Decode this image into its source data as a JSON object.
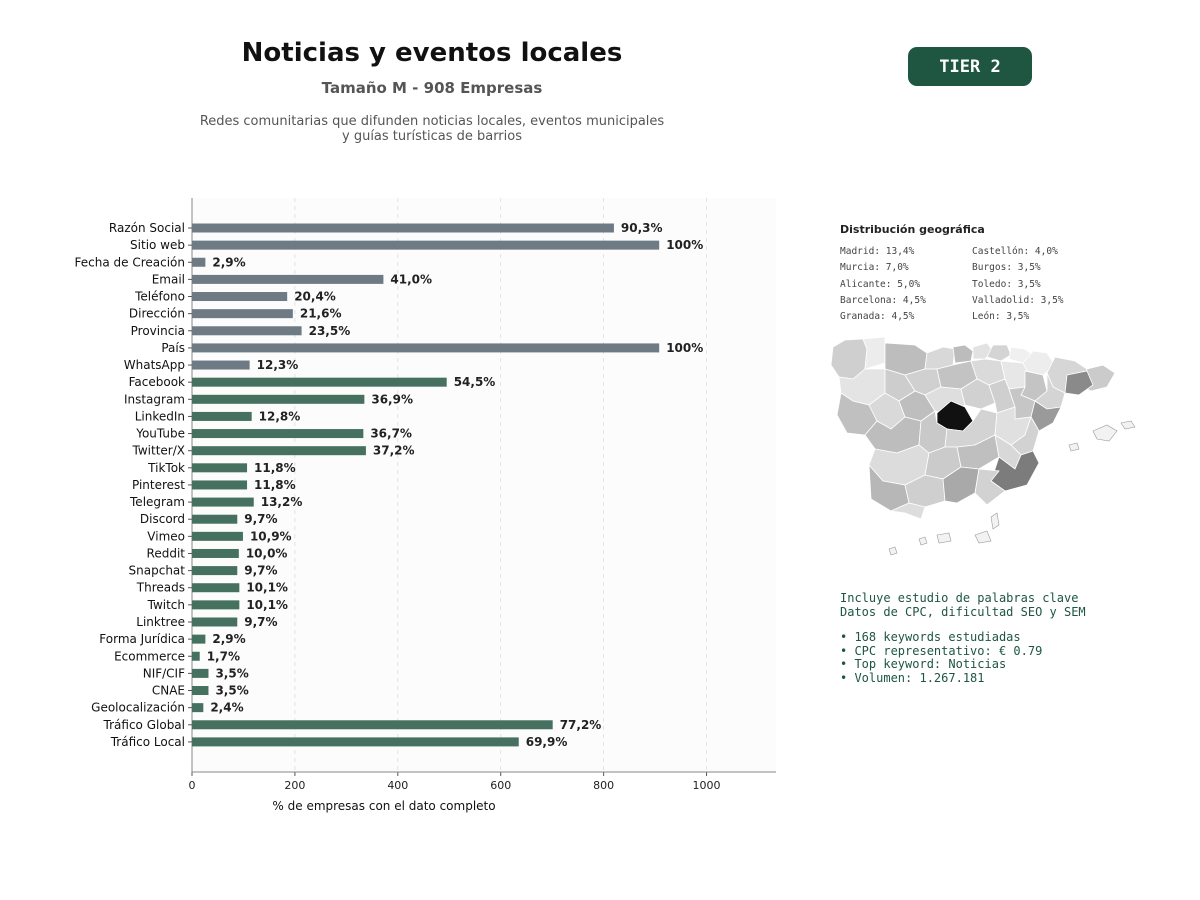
{
  "header": {
    "title": "Noticias y eventos locales",
    "subtitle": "Tamaño M - 908 Empresas",
    "description_line1": "Redes comunitarias que difunden noticias locales, eventos municipales",
    "description_line2": "y guías turísticas de barrios",
    "tier_badge": "TIER 2"
  },
  "chart_data": {
    "type": "bar",
    "orientation": "horizontal",
    "xlabel": "% de empresas con el dato completo",
    "xlim": [
      0,
      1135
    ],
    "xticks": [
      0,
      200,
      400,
      600,
      800,
      1000
    ],
    "grid": "vertical dashed",
    "categories": [
      "Razón Social",
      "Sitio web",
      "Fecha de Creación",
      "Email",
      "Teléfono",
      "Dirección",
      "Provincia",
      "País",
      "WhatsApp",
      "Facebook",
      "Instagram",
      "LinkedIn",
      "YouTube",
      "Twitter/X",
      "TikTok",
      "Pinterest",
      "Telegram",
      "Discord",
      "Vimeo",
      "Reddit",
      "Snapchat",
      "Threads",
      "Twitch",
      "Linktree",
      "Forma Jurídica",
      "Ecommerce",
      "NIF/CIF",
      "CNAE",
      "Geolocalización",
      "Tráfico Global",
      "Tráfico Local"
    ],
    "values": [
      820,
      908,
      26,
      372,
      185,
      196,
      213,
      908,
      112,
      495,
      335,
      116,
      333,
      338,
      107,
      107,
      120,
      88,
      99,
      91,
      88,
      92,
      92,
      88,
      26,
      15,
      32,
      32,
      22,
      701,
      635
    ],
    "labels": [
      "90,3%",
      "100%",
      "2,9%",
      "41,0%",
      "20,4%",
      "21,6%",
      "23,5%",
      "100%",
      "12,3%",
      "54,5%",
      "36,9%",
      "12,8%",
      "36,7%",
      "37,2%",
      "11,8%",
      "11,8%",
      "13,2%",
      "9,7%",
      "10,9%",
      "10,0%",
      "9,7%",
      "10,1%",
      "10,1%",
      "9,7%",
      "2,9%",
      "1,7%",
      "3,5%",
      "3,5%",
      "2,4%",
      "77,2%",
      "69,9%"
    ],
    "colors": [
      "#6e7b85",
      "#6e7b85",
      "#6e7b85",
      "#6e7b85",
      "#6e7b85",
      "#6e7b85",
      "#6e7b85",
      "#6e7b85",
      "#6e7b85",
      "#46705f",
      "#46705f",
      "#46705f",
      "#46705f",
      "#46705f",
      "#46705f",
      "#46705f",
      "#46705f",
      "#46705f",
      "#46705f",
      "#46705f",
      "#46705f",
      "#46705f",
      "#46705f",
      "#46705f",
      "#46705f",
      "#46705f",
      "#46705f",
      "#46705f",
      "#46705f",
      "#46705f",
      "#46705f"
    ]
  },
  "geo": {
    "title": "Distribución geográfica",
    "items": [
      "Madrid: 13,4%",
      "Castellón: 4,0%",
      "Murcia: 7,0%",
      "Burgos: 3,5%",
      "Alicante: 5,0%",
      "Toledo: 3,5%",
      "Barcelona: 4,5%",
      "Valladolid: 3,5%",
      "Granada: 4,5%",
      "León: 3,5%"
    ]
  },
  "keywords": {
    "line1": "Incluye estudio de palabras clave",
    "line2": "Datos de CPC, dificultad SEO y SEM",
    "bullet1": "• 168 keywords estudiadas",
    "bullet2": "• CPC representativo: € 0.79",
    "bullet3": "• Top keyword: Noticias",
    "bullet4": "• Volumen: 1.267.181"
  }
}
